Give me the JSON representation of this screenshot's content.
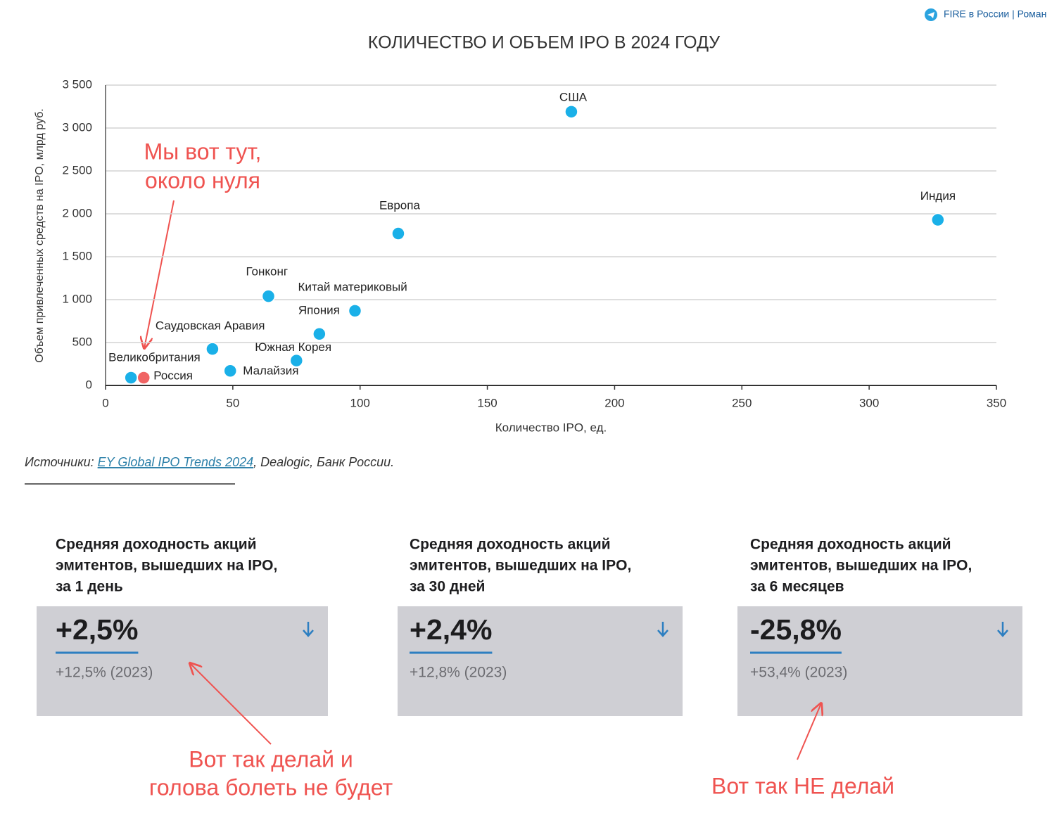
{
  "header": {
    "channel": "FIRE в России | Роман"
  },
  "chart_data": {
    "type": "scatter",
    "title": "КОЛИЧЕСТВО И ОБЪЕМ IPO В 2024 ГОДУ",
    "x_label": "Количество IPO, ед.",
    "y_label": "Объем привлеченных  средств на IPO, млрд руб.",
    "labels": [
      "Великобритания",
      "Россия",
      "Саудовская Аравия",
      "Малайзия",
      "Южная Корея",
      "Япония",
      "Гонконг",
      "Китай материковый",
      "Европа",
      "США",
      "Индия"
    ],
    "x": [
      10,
      15,
      42,
      49,
      75,
      84,
      64,
      98,
      115,
      183,
      327
    ],
    "y": [
      90,
      90,
      425,
      170,
      290,
      600,
      1040,
      870,
      1770,
      3190,
      1930
    ],
    "colors": [
      "#1ab0e8",
      "#f06464",
      "#1ab0e8",
      "#1ab0e8",
      "#1ab0e8",
      "#1ab0e8",
      "#1ab0e8",
      "#1ab0e8",
      "#1ab0e8",
      "#1ab0e8",
      "#1ab0e8"
    ],
    "xlim": [
      0,
      350
    ],
    "ylim": [
      0,
      3500
    ],
    "xticks": [
      0,
      50,
      100,
      150,
      200,
      250,
      300,
      350
    ],
    "yticks": [
      0,
      500,
      {
        "value": 1000,
        "label": "1 000"
      },
      {
        "value": 1500,
        "label": "1 500"
      },
      {
        "value": 2000,
        "label": "2 000"
      },
      {
        "value": 2500,
        "label": "2 500"
      },
      {
        "value": 3000,
        "label": "3 000"
      },
      {
        "value": 3500,
        "label": "3 500"
      }
    ],
    "grid": true
  },
  "source": {
    "prefix": "Источники:",
    "link": "EY Global IPO Trends 2024",
    "rest": ", Dealogic, Банк России."
  },
  "cards": [
    {
      "title_lines": [
        "Средняя доходность акций",
        "эмитентов, вышедших на IPO,",
        "за 1 день"
      ],
      "value": "+2,5%",
      "previous": "+12,5% (2023)"
    },
    {
      "title_lines": [
        "Средняя доходность акций",
        "эмитентов, вышедших на IPO,",
        "за 30 дней"
      ],
      "value": "+2,4%",
      "previous": "+12,8% (2023)"
    },
    {
      "title_lines": [
        "Средняя доходность акций",
        "эмитентов, вышедших на IPO,",
        "за 6 месяцев"
      ],
      "value": "-25,8%",
      "previous": "+53,4% (2023)"
    }
  ],
  "annotations": [
    {
      "lines": [
        "Мы вот тут,",
        "около нуля"
      ]
    },
    {
      "lines": [
        "Вот так делай и",
        "голова болеть не будет"
      ]
    },
    {
      "lines": [
        "Вот так НЕ делай"
      ]
    }
  ]
}
